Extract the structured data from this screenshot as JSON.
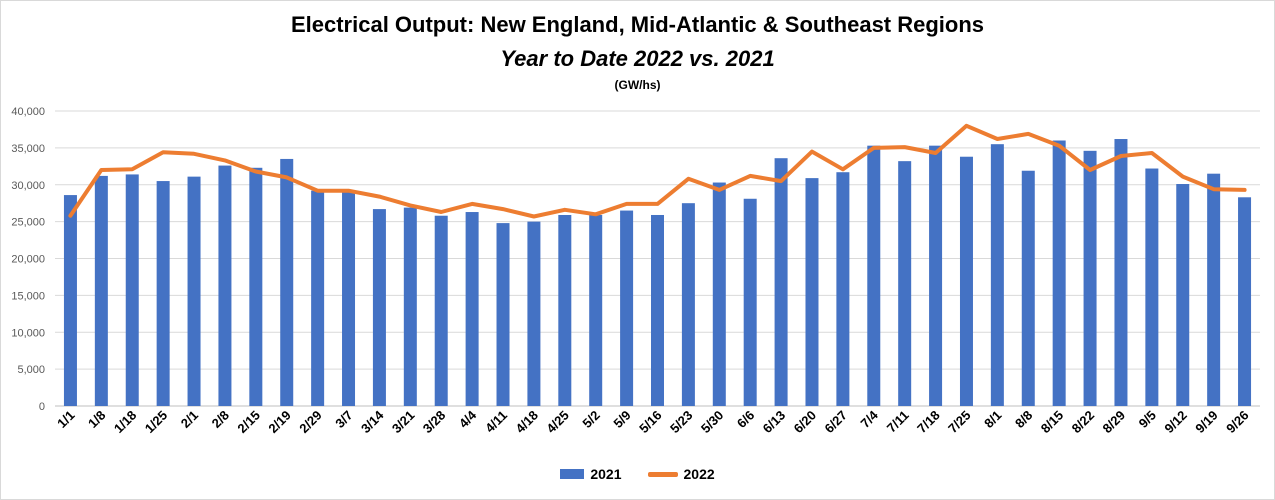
{
  "title": "Electrical Output:  New England, Mid-Atlantic & Southeast Regions",
  "subtitle": "Year to Date 2022 vs. 2021",
  "unit": "(GW/hs)",
  "colors": {
    "bar": "#4472C4",
    "line": "#ED7D31",
    "grid": "#d9d9d9",
    "axis": "#bfbfbf"
  },
  "chart_data": {
    "type": "bar",
    "categories": [
      "1/1",
      "1/8",
      "1/18",
      "1/25",
      "2/1",
      "2/8",
      "2/15",
      "2/19",
      "2/29",
      "3/7",
      "3/14",
      "3/21",
      "3/28",
      "4/4",
      "4/11",
      "4/18",
      "4/25",
      "5/2",
      "5/9",
      "5/16",
      "5/23",
      "5/30",
      "6/6",
      "6/13",
      "6/20",
      "6/27",
      "7/4",
      "7/11",
      "7/18",
      "7/25",
      "8/1",
      "8/8",
      "8/15",
      "8/22",
      "8/29",
      "9/5",
      "9/12",
      "9/19",
      "9/26"
    ],
    "series": [
      {
        "name": "2021",
        "type": "bar",
        "values": [
          28600,
          31200,
          31400,
          30500,
          31100,
          32600,
          32300,
          33500,
          29200,
          29000,
          26700,
          26900,
          25800,
          26300,
          24800,
          25000,
          25900,
          25900,
          26500,
          25900,
          27500,
          30300,
          28100,
          33600,
          30900,
          31700,
          35300,
          33200,
          35300,
          33800,
          35500,
          31900,
          36000,
          34600,
          36200,
          32200,
          30100,
          31500,
          28300
        ]
      },
      {
        "name": "2022",
        "type": "line",
        "values": [
          25800,
          32000,
          32100,
          34400,
          34200,
          33300,
          31800,
          31000,
          29200,
          29200,
          28400,
          27200,
          26300,
          27400,
          26700,
          25700,
          26600,
          26000,
          27400,
          27400,
          30800,
          29300,
          31200,
          30500,
          34500,
          32100,
          35000,
          35100,
          34300,
          38000,
          36200,
          36900,
          35300,
          32000,
          33900,
          34300,
          31100,
          29400,
          29300
        ]
      }
    ],
    "ylim": [
      0,
      40000
    ],
    "yticks": [
      "0",
      "5,000",
      "10,000",
      "15,000",
      "20,000",
      "25,000",
      "30,000",
      "35,000",
      "40,000"
    ],
    "grid": true,
    "legend": "bottom-center"
  }
}
